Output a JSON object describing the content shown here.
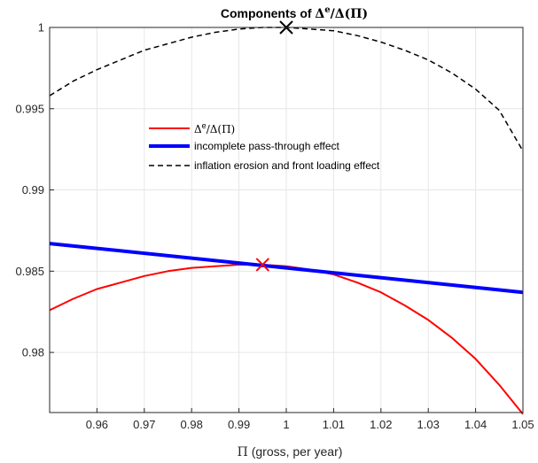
{
  "chart_data": {
    "type": "line",
    "title": {
      "prefix": "Components of ",
      "delta": "Δ",
      "sup": "e",
      "suffix": "/Δ(Π)"
    },
    "xlabel": {
      "symbol": "Π",
      "text": " (gross, per year)"
    },
    "ylabel": "",
    "xlim": [
      0.95,
      1.05
    ],
    "ylim": [
      0.9763,
      1.0
    ],
    "grid": true,
    "legend_position": "upper-left",
    "x_ticks": [
      0.96,
      0.97,
      0.98,
      0.99,
      1,
      1.01,
      1.02,
      1.03,
      1.04,
      1.05
    ],
    "x_tick_labels": [
      "0.96",
      "0.97",
      "0.98",
      "0.99",
      "1",
      "1.01",
      "1.02",
      "1.03",
      "1.04",
      "1.05"
    ],
    "y_ticks": [
      0.98,
      0.985,
      0.99,
      0.995,
      1
    ],
    "y_tick_labels": [
      "0.98",
      "0.985",
      "0.99",
      "0.995",
      "1"
    ],
    "series": [
      {
        "label_delta": "Δ",
        "label_sup": "e",
        "label_rest": "/Δ(Π)",
        "color": "#ff0000",
        "style": "solid",
        "x": [
          0.95,
          0.955,
          0.96,
          0.965,
          0.97,
          0.975,
          0.98,
          0.985,
          0.99,
          0.995,
          1.0,
          1.005,
          1.01,
          1.015,
          1.02,
          1.025,
          1.03,
          1.035,
          1.04,
          1.045,
          1.05
        ],
        "y": [
          0.9826,
          0.9833,
          0.9839,
          0.9843,
          0.9847,
          0.985,
          0.9852,
          0.9853,
          0.9854,
          0.9854,
          0.9853,
          0.9851,
          0.9848,
          0.9843,
          0.9837,
          0.9829,
          0.982,
          0.9809,
          0.9796,
          0.978,
          0.9762
        ],
        "marker": {
          "x": 0.995,
          "y": 0.9854,
          "shape": "x"
        }
      },
      {
        "label": "incomplete pass-through effect",
        "color": "#0000ff",
        "style": "solid-thick",
        "x": [
          0.95,
          1.05
        ],
        "y": [
          0.9867,
          0.9837
        ]
      },
      {
        "label": "inflation erosion and front loading effect",
        "color": "#000000",
        "style": "dashed",
        "x": [
          0.95,
          0.955,
          0.96,
          0.965,
          0.97,
          0.975,
          0.98,
          0.985,
          0.99,
          0.995,
          1.0,
          1.005,
          1.01,
          1.015,
          1.02,
          1.025,
          1.03,
          1.035,
          1.04,
          1.045,
          1.05
        ],
        "y": [
          0.9958,
          0.9967,
          0.9974,
          0.998,
          0.9986,
          0.999,
          0.9994,
          0.9997,
          0.9999,
          1.0,
          1.0,
          0.9999,
          0.9998,
          0.9995,
          0.9991,
          0.9986,
          0.998,
          0.9972,
          0.9962,
          0.9949,
          0.9924
        ],
        "marker": {
          "x": 1.0,
          "y": 1.0,
          "shape": "x"
        }
      }
    ]
  }
}
